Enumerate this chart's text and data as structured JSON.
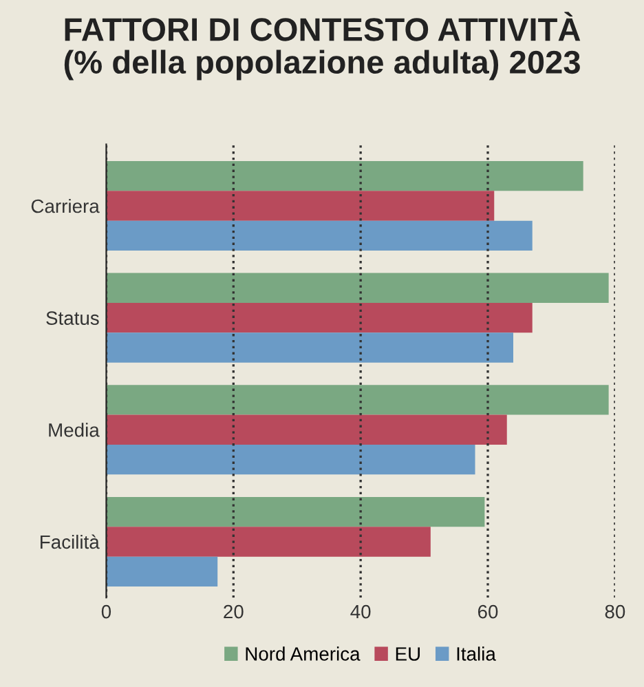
{
  "chart_data": {
    "type": "bar",
    "orientation": "horizontal",
    "title": "FATTORI DI CONTESTO ATTIVITÀ\n(% della popolazione adulta) 2023",
    "categories": [
      "Carriera",
      "Status",
      "Media",
      "Facilità"
    ],
    "series": [
      {
        "name": "Nord America",
        "color": "#7aa882",
        "values": [
          75,
          79,
          79,
          59.5
        ]
      },
      {
        "name": "EU",
        "color": "#b84a5c",
        "values": [
          61,
          67,
          63,
          51
        ]
      },
      {
        "name": "Italia",
        "color": "#6b9bc6",
        "values": [
          67,
          64,
          58,
          17.5
        ]
      }
    ],
    "xlim": [
      0,
      80
    ],
    "xticks": [
      0,
      20,
      40,
      60,
      80
    ],
    "grid": "x",
    "line_style": "dotted",
    "legend": "bottom"
  }
}
